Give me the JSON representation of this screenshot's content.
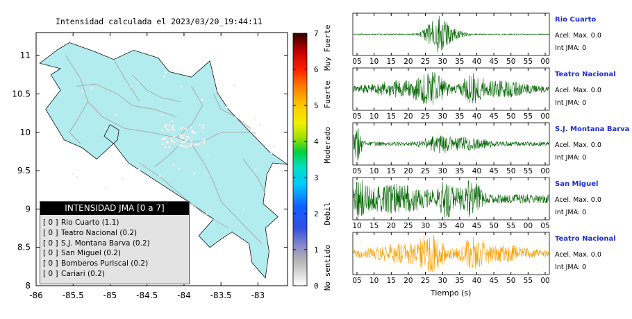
{
  "map": {
    "title": "Intensidad calculada el 2023/03/20_19:44:11",
    "x_ticks": [
      "-86",
      "-85.5",
      "-85",
      "-84.5",
      "-84",
      "-83.5",
      "-83"
    ],
    "x_values": [
      -86,
      -85.5,
      -85,
      -84.5,
      -84,
      -83.5,
      -83
    ],
    "y_ticks": [
      "11",
      "10.5",
      "10",
      "9.5",
      "9",
      "8.5",
      "8"
    ],
    "y_values": [
      11,
      10.5,
      10,
      9.5,
      9,
      8.5,
      8
    ],
    "xlim": [
      -86,
      -82.6
    ],
    "ylim": [
      8,
      11.3
    ],
    "land_color": "#b2ecef",
    "road_color": "#aaaaaa"
  },
  "colorbar": {
    "ticks": [
      "0",
      "1",
      "2",
      "3",
      "4",
      "5",
      "6",
      "7"
    ],
    "tick_values": [
      0,
      1,
      2,
      3,
      4,
      5,
      6,
      7
    ],
    "labels": [
      {
        "text": "No sentido",
        "value": 0.5
      },
      {
        "text": "Debil",
        "value": 2
      },
      {
        "text": "Moderado",
        "value": 3.9
      },
      {
        "text": "Fuerte",
        "value": 5.3
      },
      {
        "text": "Muy Fuerte",
        "value": 6.6
      }
    ]
  },
  "legend": {
    "title": "INTENSIDAD JMA [0 a 7]",
    "items": [
      {
        "code": "[ 0 ]",
        "label": "Rio Cuarto (1.1)"
      },
      {
        "code": "[ 0 ]",
        "label": "Teatro Nacional (0.2)"
      },
      {
        "code": "[ 0 ]",
        "label": "S.J. Montana Barva (0.2)"
      },
      {
        "code": "[ 0 ]",
        "label": "San Miguel (0.2)"
      },
      {
        "code": "[ 0 ]",
        "label": "Bomberos Puriscal (0.2)"
      },
      {
        "code": "[ 0 ]",
        "label": "Cariari (0.2)"
      }
    ]
  },
  "traces": [
    {
      "name": "Rio Cuarto",
      "acel": "Acel. Max. 0.0",
      "int": "Int JMA: 0",
      "color": "#006400",
      "ticks": [
        "05",
        "10",
        "15",
        "20",
        "25",
        "30",
        "35",
        "40",
        "45",
        "50",
        "55",
        "00"
      ]
    },
    {
      "name": "Teatro Nacional",
      "acel": "Acel. Max. 0.0",
      "int": "Int JMA: 0",
      "color": "#006400",
      "ticks": [
        "05",
        "10",
        "15",
        "20",
        "25",
        "30",
        "35",
        "40",
        "45",
        "50",
        "55",
        "00"
      ]
    },
    {
      "name": "S.J. Montana Barva",
      "acel": "Acel. Max. 0.0",
      "int": "Int JMA: 0",
      "color": "#006400",
      "ticks": [
        "05",
        "10",
        "15",
        "20",
        "25",
        "30",
        "35",
        "40",
        "45",
        "50",
        "55",
        "00"
      ]
    },
    {
      "name": "San Miguel",
      "acel": "Acel. Max. 0.0",
      "int": "Int JMA: 0",
      "color": "#006400",
      "ticks": [
        "10",
        "15",
        "20",
        "25",
        "30",
        "35",
        "40",
        "45",
        "50",
        "55",
        "00",
        "05"
      ]
    },
    {
      "name": "Teatro Nacional",
      "acel": "Acel. Max. 0.0",
      "int": "Int JMA: 0",
      "color": "#f5a000",
      "ticks": [
        "05",
        "10",
        "15",
        "20",
        "25",
        "30",
        "35",
        "40",
        "45",
        "50",
        "55",
        "00"
      ]
    }
  ],
  "traces_xlabel": "Tiempo (s)",
  "chart_data": [
    {
      "type": "scatter",
      "title": "Intensidad calculada el 2023/03/20_19:44:11",
      "xlabel": "",
      "ylabel": "",
      "xlim": [
        -86,
        -82.6
      ],
      "ylim": [
        8,
        11.3
      ],
      "legend_title": "INTENSIDAD JMA [0 a 7]",
      "legend_placement": "bottom-left",
      "series": [
        {
          "name": "Rio Cuarto",
          "value": 1.1
        },
        {
          "name": "Teatro Nacional",
          "value": 0.2
        },
        {
          "name": "S.J. Montana Barva",
          "value": 0.2
        },
        {
          "name": "San Miguel",
          "value": 0.2
        },
        {
          "name": "Bomberos Puriscal",
          "value": 0.2
        },
        {
          "name": "Cariari",
          "value": 0.2
        }
      ],
      "colorbar_range": [
        0,
        7
      ]
    },
    {
      "type": "line",
      "xlabel": "Tiempo (s)",
      "series": [
        {
          "name": "Rio Cuarto",
          "peak_time_label": "30"
        },
        {
          "name": "Teatro Nacional",
          "peak_time_label": "25"
        },
        {
          "name": "S.J. Montana Barva",
          "peak_time_label": "05"
        },
        {
          "name": "San Miguel",
          "peak_time_label": "35"
        },
        {
          "name": "Teatro Nacional",
          "peak_time_label": "25"
        }
      ]
    }
  ]
}
